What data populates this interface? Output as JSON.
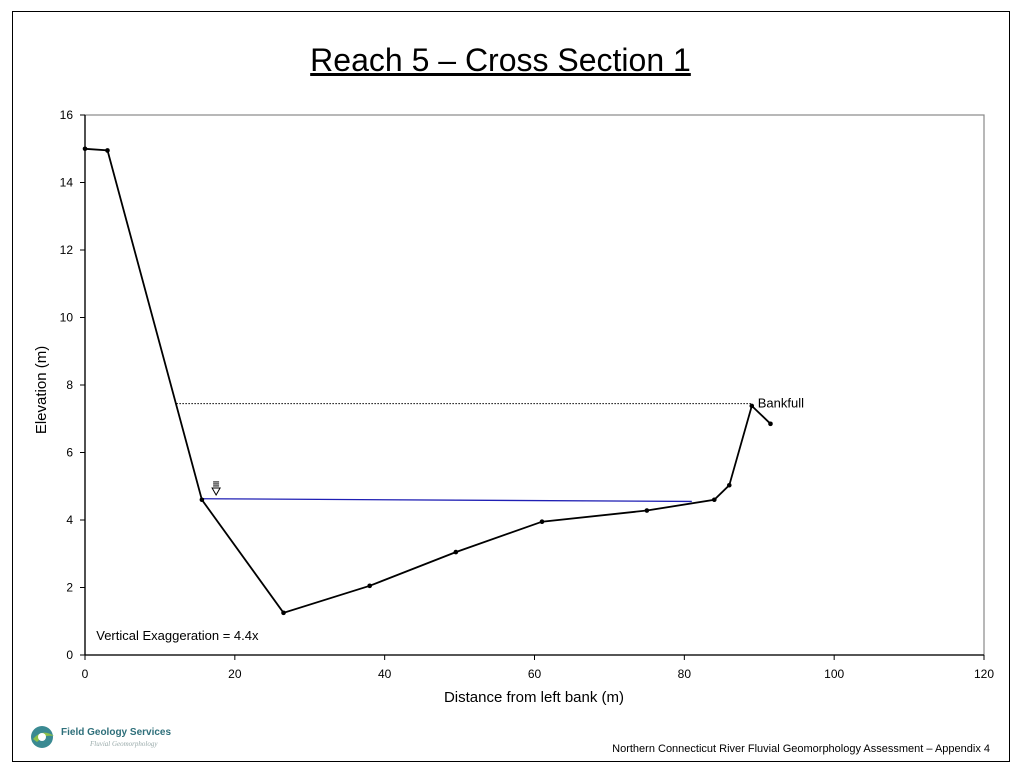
{
  "slide": {
    "title": "Reach 5 – Cross Section 1",
    "footer": "Northern Connecticut River Fluvial Geomorphology Assessment – Appendix 4",
    "logo": {
      "name": "Field Geology Services",
      "tagline": "Fluvial Geomorphology"
    }
  },
  "chart_data": {
    "type": "line",
    "title": "Reach 5 – Cross Section 1",
    "xlabel": "Distance from left bank (m)",
    "ylabel": "Elevation (m)",
    "xlim": [
      0,
      120
    ],
    "ylim": [
      0,
      16
    ],
    "xticks": [
      0,
      20,
      40,
      60,
      80,
      100,
      120
    ],
    "yticks": [
      0,
      2,
      4,
      6,
      8,
      10,
      12,
      14,
      16
    ],
    "grid": false,
    "series": [
      {
        "style": "solid-black-with-markers",
        "x": [
          0,
          3,
          15.6,
          26.5,
          38,
          49.5,
          61,
          75,
          84,
          86,
          89,
          91.5
        ],
        "y": [
          15.0,
          14.95,
          4.6,
          1.25,
          2.05,
          3.05,
          3.95,
          4.28,
          4.6,
          5.03,
          7.38,
          6.85
        ]
      }
    ],
    "annotations": [
      {
        "type": "bankfull-line",
        "style": "dotted-black",
        "x": [
          12.2,
          89
        ],
        "y": [
          7.45,
          7.45
        ]
      },
      {
        "type": "bankfull-label",
        "text": "Bankfull",
        "x": 89.8,
        "y": 7.45
      },
      {
        "type": "water-surface-line",
        "style": "solid-blue",
        "color": "#1f1fb4",
        "x": [
          15.6,
          81
        ],
        "y": [
          4.63,
          4.55
        ]
      },
      {
        "type": "water-surface-symbol",
        "x": 17.5,
        "y": 4.95
      },
      {
        "type": "note",
        "text": "Vertical Exaggeration = 4.4x",
        "x": 1.5,
        "y": 0.45
      }
    ]
  }
}
